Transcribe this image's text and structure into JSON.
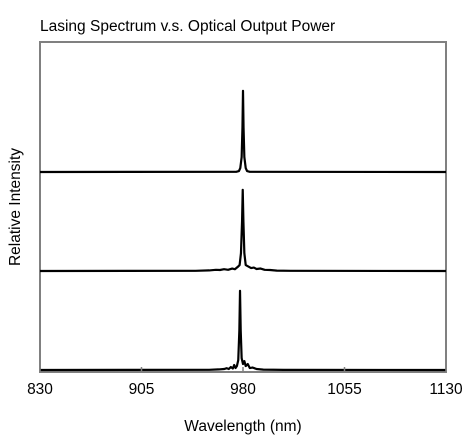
{
  "chart_data": {
    "type": "line",
    "title": "Lasing Spectrum v.s. Optical Output Power",
    "xlabel": "Wavelength (nm)",
    "ylabel": "Relative Intensity",
    "xlim": [
      830,
      1130
    ],
    "xticks": [
      "830",
      "905",
      "980",
      "1055",
      "1130"
    ],
    "y_tick_labels": false,
    "grid": false,
    "colors": {
      "line": "#000000",
      "frame": "#808080",
      "background": "#ffffff"
    },
    "series": [
      {
        "baseline": 2,
        "points": [
          [
            830,
            0
          ],
          [
            975,
            0.002
          ],
          [
            977,
            0.01
          ],
          [
            978,
            0.04
          ],
          [
            979,
            0.15
          ],
          [
            979.6,
            0.45
          ],
          [
            980,
            0.82
          ],
          [
            980.4,
            0.45
          ],
          [
            981,
            0.15
          ],
          [
            982,
            0.04
          ],
          [
            983,
            0.01
          ],
          [
            985,
            0.002
          ],
          [
            1130,
            0
          ]
        ]
      },
      {
        "baseline": 1,
        "points": [
          [
            830,
            0
          ],
          [
            945,
            0.002
          ],
          [
            955,
            0.006
          ],
          [
            960,
            0.012
          ],
          [
            963,
            0.01
          ],
          [
            966,
            0.018
          ],
          [
            969,
            0.012
          ],
          [
            972,
            0.025
          ],
          [
            974,
            0.018
          ],
          [
            976,
            0.04
          ],
          [
            977.5,
            0.06
          ],
          [
            978.5,
            0.18
          ],
          [
            979.3,
            0.5
          ],
          [
            979.8,
            0.82
          ],
          [
            980.3,
            0.5
          ],
          [
            981,
            0.18
          ],
          [
            982,
            0.06
          ],
          [
            984,
            0.045
          ],
          [
            986,
            0.03
          ],
          [
            988,
            0.035
          ],
          [
            990,
            0.02
          ],
          [
            993,
            0.025
          ],
          [
            996,
            0.012
          ],
          [
            1000,
            0.01
          ],
          [
            1005,
            0.004
          ],
          [
            1015,
            0.002
          ],
          [
            1130,
            0
          ]
        ]
      },
      {
        "baseline": 0,
        "points": [
          [
            830,
            0
          ],
          [
            955,
            0.002
          ],
          [
            962,
            0.006
          ],
          [
            966,
            0.01
          ],
          [
            968,
            0.018
          ],
          [
            969.5,
            0.01
          ],
          [
            971,
            0.03
          ],
          [
            972.5,
            0.015
          ],
          [
            973.5,
            0.05
          ],
          [
            974.5,
            0.02
          ],
          [
            975.5,
            0.04
          ],
          [
            976.5,
            0.1
          ],
          [
            977.3,
            0.4
          ],
          [
            977.8,
            0.8
          ],
          [
            978.3,
            0.4
          ],
          [
            979,
            0.12
          ],
          [
            980,
            0.06
          ],
          [
            981,
            0.09
          ],
          [
            982,
            0.04
          ],
          [
            983.5,
            0.06
          ],
          [
            985,
            0.02
          ],
          [
            987,
            0.025
          ],
          [
            990,
            0.01
          ],
          [
            995,
            0.004
          ],
          [
            1010,
            0.001
          ],
          [
            1130,
            0
          ]
        ]
      }
    ]
  }
}
